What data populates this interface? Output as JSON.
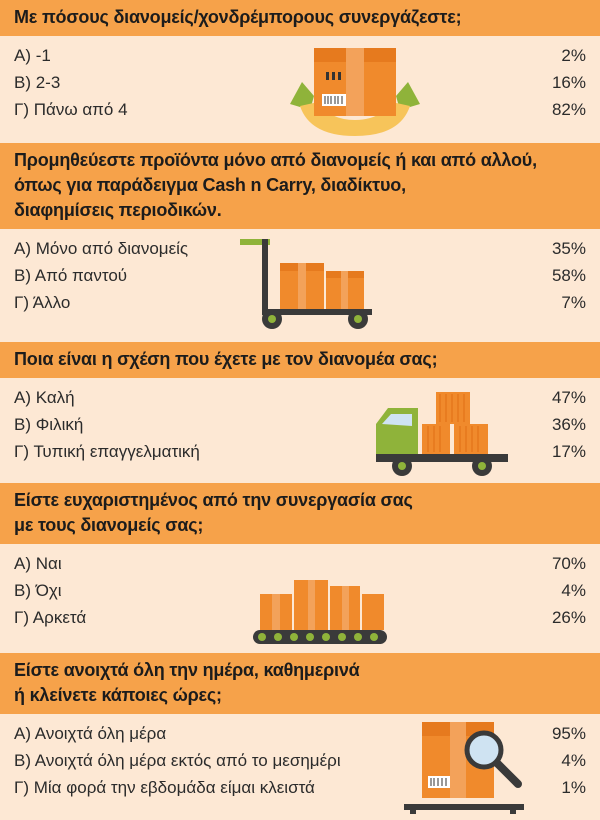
{
  "sections": [
    {
      "question": "Με πόσους διανομείς/χονδρέμπορους συνεργάζεστε;",
      "answers": [
        {
          "label": "Α) -1",
          "pct": "2%"
        },
        {
          "label": "Β) 2-3",
          "pct": "16%"
        },
        {
          "label": "Γ) Πάνω από 4",
          "pct": "82%"
        }
      ],
      "illustration": "box-in-hands-icon"
    },
    {
      "question_lines": [
        "Προμηθεύεστε προϊόντα μόνο από διανομείς ή και από αλλού,",
        "όπως για παράδειγμα Cash n Carry, διαδίκτυο,",
        "διαφημίσεις περιοδικών."
      ],
      "answers": [
        {
          "label": "Α) Μόνο από διανομείς",
          "pct": "35%"
        },
        {
          "label": "Β) Από παντού",
          "pct": "58%"
        },
        {
          "label": "Γ) Άλλο",
          "pct": "7%"
        }
      ],
      "illustration": "hand-truck-icon"
    },
    {
      "question": "Ποια είναι η σχέση που έχετε με τον διανομέα σας;",
      "answers": [
        {
          "label": "Α) Καλή",
          "pct": "47%"
        },
        {
          "label": "Β) Φιλική",
          "pct": "36%"
        },
        {
          "label": "Γ) Τυπική επαγγελματική",
          "pct": "17%"
        }
      ],
      "illustration": "delivery-truck-icon"
    },
    {
      "question_lines": [
        "Είστε ευχαριστημένος από την συνεργασία σας",
        "με τους διανομείς σας;"
      ],
      "answers": [
        {
          "label": "Α) Ναι",
          "pct": "70%"
        },
        {
          "label": "Β) Όχι",
          "pct": "4%"
        },
        {
          "label": "Γ) Αρκετά",
          "pct": "26%"
        }
      ],
      "illustration": "conveyor-belt-icon"
    },
    {
      "question_lines": [
        "Είστε ανοιχτά όλη την ημέρα, καθημερινά",
        "ή κλείνετε κάποιες ώρες;"
      ],
      "answers": [
        {
          "label": "Α) Ανοιχτά όλη μέρα",
          "pct": "95%"
        },
        {
          "label": "Β) Ανοιχτά όλη μέρα εκτός από το μεσημέρι",
          "pct": "4%"
        },
        {
          "label": "Γ) Μία φορά την εβδομάδα είμαι κλειστά",
          "pct": "1%"
        }
      ],
      "illustration": "box-magnifier-icon"
    }
  ],
  "colors": {
    "header_bg": "#f6a24a",
    "answer_bg": "#fde8d4",
    "box_orange": "#f08a2c",
    "truck_green": "#8fb33a",
    "dark": "#3a3a3a"
  }
}
